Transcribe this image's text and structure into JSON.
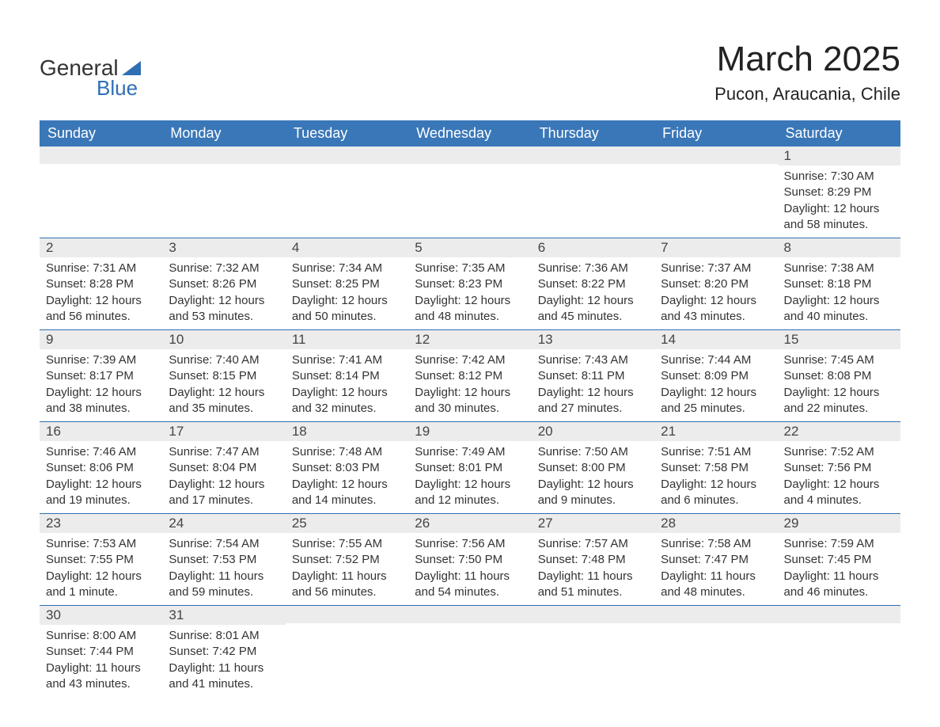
{
  "brand": {
    "name_part1": "General",
    "name_part2": "Blue",
    "text_color": "#333333",
    "accent_color": "#2f6fb3"
  },
  "header": {
    "title": "March 2025",
    "location": "Pucon, Araucania, Chile",
    "title_fontsize": 44,
    "location_fontsize": 22
  },
  "calendar": {
    "day_headers": [
      "Sunday",
      "Monday",
      "Tuesday",
      "Wednesday",
      "Thursday",
      "Friday",
      "Saturday"
    ],
    "header_bg": "#3a77b8",
    "header_text_color": "#ffffff",
    "daynum_bg": "#ececec",
    "border_color": "#2f6fb3",
    "body_text_color": "#333333",
    "weeks": [
      [
        {
          "day": "",
          "lines": []
        },
        {
          "day": "",
          "lines": []
        },
        {
          "day": "",
          "lines": []
        },
        {
          "day": "",
          "lines": []
        },
        {
          "day": "",
          "lines": []
        },
        {
          "day": "",
          "lines": []
        },
        {
          "day": "1",
          "lines": [
            "Sunrise: 7:30 AM",
            "Sunset: 8:29 PM",
            "Daylight: 12 hours and 58 minutes."
          ]
        }
      ],
      [
        {
          "day": "2",
          "lines": [
            "Sunrise: 7:31 AM",
            "Sunset: 8:28 PM",
            "Daylight: 12 hours and 56 minutes."
          ]
        },
        {
          "day": "3",
          "lines": [
            "Sunrise: 7:32 AM",
            "Sunset: 8:26 PM",
            "Daylight: 12 hours and 53 minutes."
          ]
        },
        {
          "day": "4",
          "lines": [
            "Sunrise: 7:34 AM",
            "Sunset: 8:25 PM",
            "Daylight: 12 hours and 50 minutes."
          ]
        },
        {
          "day": "5",
          "lines": [
            "Sunrise: 7:35 AM",
            "Sunset: 8:23 PM",
            "Daylight: 12 hours and 48 minutes."
          ]
        },
        {
          "day": "6",
          "lines": [
            "Sunrise: 7:36 AM",
            "Sunset: 8:22 PM",
            "Daylight: 12 hours and 45 minutes."
          ]
        },
        {
          "day": "7",
          "lines": [
            "Sunrise: 7:37 AM",
            "Sunset: 8:20 PM",
            "Daylight: 12 hours and 43 minutes."
          ]
        },
        {
          "day": "8",
          "lines": [
            "Sunrise: 7:38 AM",
            "Sunset: 8:18 PM",
            "Daylight: 12 hours and 40 minutes."
          ]
        }
      ],
      [
        {
          "day": "9",
          "lines": [
            "Sunrise: 7:39 AM",
            "Sunset: 8:17 PM",
            "Daylight: 12 hours and 38 minutes."
          ]
        },
        {
          "day": "10",
          "lines": [
            "Sunrise: 7:40 AM",
            "Sunset: 8:15 PM",
            "Daylight: 12 hours and 35 minutes."
          ]
        },
        {
          "day": "11",
          "lines": [
            "Sunrise: 7:41 AM",
            "Sunset: 8:14 PM",
            "Daylight: 12 hours and 32 minutes."
          ]
        },
        {
          "day": "12",
          "lines": [
            "Sunrise: 7:42 AM",
            "Sunset: 8:12 PM",
            "Daylight: 12 hours and 30 minutes."
          ]
        },
        {
          "day": "13",
          "lines": [
            "Sunrise: 7:43 AM",
            "Sunset: 8:11 PM",
            "Daylight: 12 hours and 27 minutes."
          ]
        },
        {
          "day": "14",
          "lines": [
            "Sunrise: 7:44 AM",
            "Sunset: 8:09 PM",
            "Daylight: 12 hours and 25 minutes."
          ]
        },
        {
          "day": "15",
          "lines": [
            "Sunrise: 7:45 AM",
            "Sunset: 8:08 PM",
            "Daylight: 12 hours and 22 minutes."
          ]
        }
      ],
      [
        {
          "day": "16",
          "lines": [
            "Sunrise: 7:46 AM",
            "Sunset: 8:06 PM",
            "Daylight: 12 hours and 19 minutes."
          ]
        },
        {
          "day": "17",
          "lines": [
            "Sunrise: 7:47 AM",
            "Sunset: 8:04 PM",
            "Daylight: 12 hours and 17 minutes."
          ]
        },
        {
          "day": "18",
          "lines": [
            "Sunrise: 7:48 AM",
            "Sunset: 8:03 PM",
            "Daylight: 12 hours and 14 minutes."
          ]
        },
        {
          "day": "19",
          "lines": [
            "Sunrise: 7:49 AM",
            "Sunset: 8:01 PM",
            "Daylight: 12 hours and 12 minutes."
          ]
        },
        {
          "day": "20",
          "lines": [
            "Sunrise: 7:50 AM",
            "Sunset: 8:00 PM",
            "Daylight: 12 hours and 9 minutes."
          ]
        },
        {
          "day": "21",
          "lines": [
            "Sunrise: 7:51 AM",
            "Sunset: 7:58 PM",
            "Daylight: 12 hours and 6 minutes."
          ]
        },
        {
          "day": "22",
          "lines": [
            "Sunrise: 7:52 AM",
            "Sunset: 7:56 PM",
            "Daylight: 12 hours and 4 minutes."
          ]
        }
      ],
      [
        {
          "day": "23",
          "lines": [
            "Sunrise: 7:53 AM",
            "Sunset: 7:55 PM",
            "Daylight: 12 hours and 1 minute."
          ]
        },
        {
          "day": "24",
          "lines": [
            "Sunrise: 7:54 AM",
            "Sunset: 7:53 PM",
            "Daylight: 11 hours and 59 minutes."
          ]
        },
        {
          "day": "25",
          "lines": [
            "Sunrise: 7:55 AM",
            "Sunset: 7:52 PM",
            "Daylight: 11 hours and 56 minutes."
          ]
        },
        {
          "day": "26",
          "lines": [
            "Sunrise: 7:56 AM",
            "Sunset: 7:50 PM",
            "Daylight: 11 hours and 54 minutes."
          ]
        },
        {
          "day": "27",
          "lines": [
            "Sunrise: 7:57 AM",
            "Sunset: 7:48 PM",
            "Daylight: 11 hours and 51 minutes."
          ]
        },
        {
          "day": "28",
          "lines": [
            "Sunrise: 7:58 AM",
            "Sunset: 7:47 PM",
            "Daylight: 11 hours and 48 minutes."
          ]
        },
        {
          "day": "29",
          "lines": [
            "Sunrise: 7:59 AM",
            "Sunset: 7:45 PM",
            "Daylight: 11 hours and 46 minutes."
          ]
        }
      ],
      [
        {
          "day": "30",
          "lines": [
            "Sunrise: 8:00 AM",
            "Sunset: 7:44 PM",
            "Daylight: 11 hours and 43 minutes."
          ]
        },
        {
          "day": "31",
          "lines": [
            "Sunrise: 8:01 AM",
            "Sunset: 7:42 PM",
            "Daylight: 11 hours and 41 minutes."
          ]
        },
        {
          "day": "",
          "lines": []
        },
        {
          "day": "",
          "lines": []
        },
        {
          "day": "",
          "lines": []
        },
        {
          "day": "",
          "lines": []
        },
        {
          "day": "",
          "lines": []
        }
      ]
    ]
  }
}
